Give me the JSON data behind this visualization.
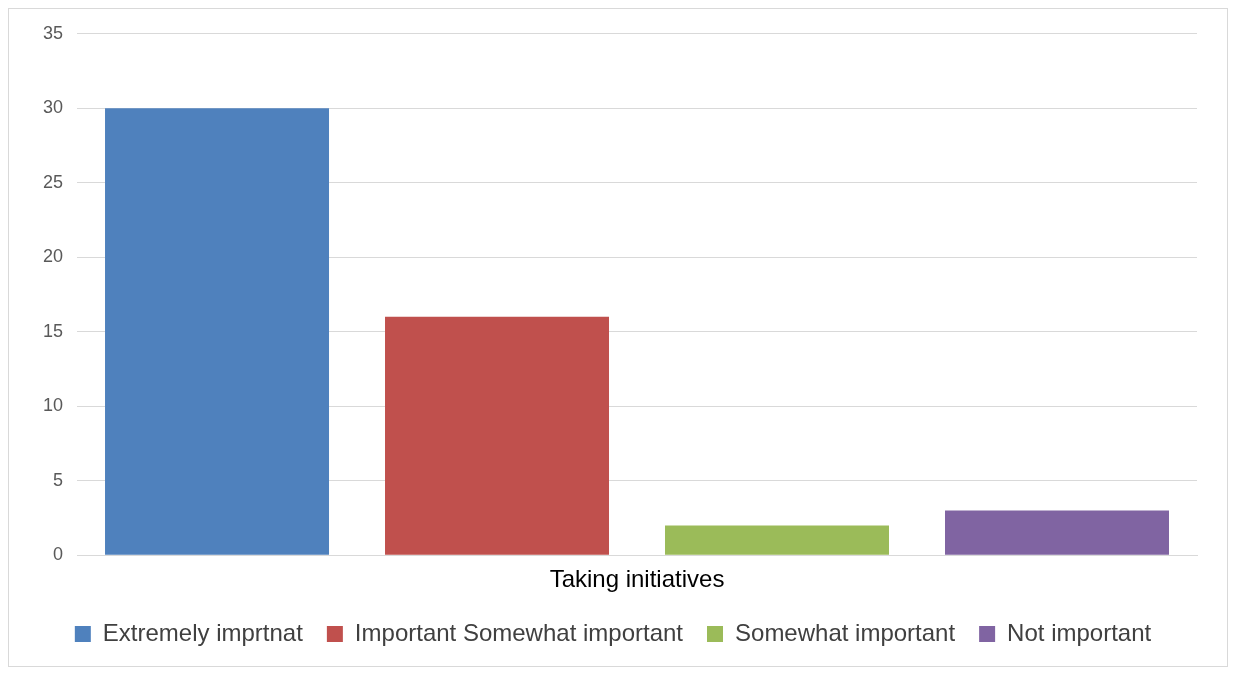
{
  "chart_data": {
    "type": "bar",
    "categories": [
      "Taking initiatives"
    ],
    "series": [
      {
        "name": "Extremely imprtnat",
        "color": "#4f81bd",
        "values": [
          30
        ]
      },
      {
        "name": "Important Somewhat important",
        "color": "#c0504d",
        "values": [
          16
        ]
      },
      {
        "name": "Somewhat important",
        "color": "#9bbb59",
        "values": [
          2
        ]
      },
      {
        "name": "Not important",
        "color": "#8064a2",
        "values": [
          3
        ]
      }
    ],
    "ylim": [
      0,
      35
    ],
    "yticks": [
      0,
      5,
      10,
      15,
      20,
      25,
      30,
      35
    ],
    "grid": "y",
    "legend": "bottom"
  }
}
